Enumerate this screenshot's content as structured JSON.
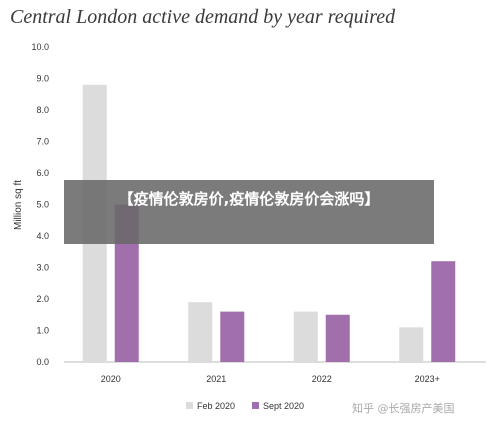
{
  "chart_data": {
    "type": "bar",
    "title": "Central London active demand by year required",
    "ylabel": "Million sq ft",
    "xlabel": "",
    "categories": [
      "2020",
      "2021",
      "2022",
      "2023+"
    ],
    "series": [
      {
        "name": "Feb 2020",
        "color": "#dcdcdc",
        "values": [
          8.8,
          1.9,
          1.6,
          1.1
        ]
      },
      {
        "name": "Sept 2020",
        "color": "#a26fad",
        "values": [
          5.0,
          1.6,
          1.5,
          3.2
        ]
      }
    ],
    "ylim": [
      0,
      10
    ],
    "yticks": [
      "0.0",
      "1.0",
      "2.0",
      "3.0",
      "4.0",
      "5.0",
      "6.0",
      "7.0",
      "8.0",
      "9.0",
      "10.0"
    ],
    "grid": false,
    "legend": "bottom"
  },
  "overlay": {
    "text": "【疫情伦敦房价,疫情伦敦房价会涨吗】"
  },
  "watermark": {
    "text": "知乎 @长强房产美国"
  }
}
